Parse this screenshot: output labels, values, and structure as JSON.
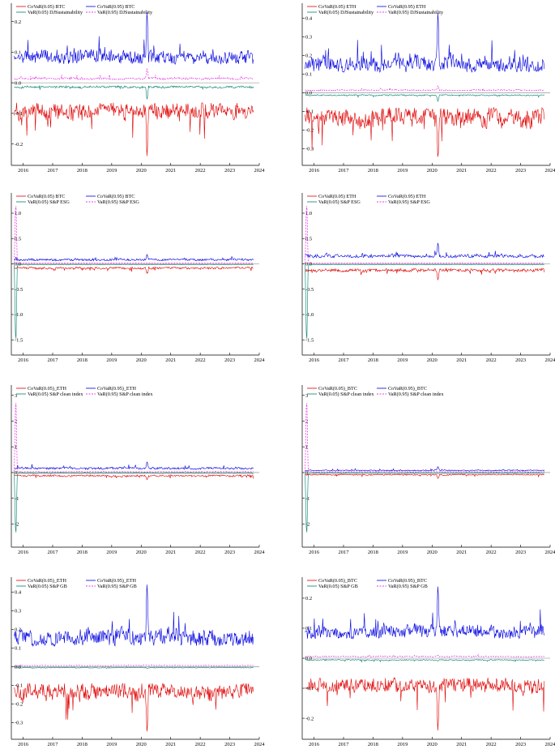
{
  "colors": {
    "covar_low": "#e00000",
    "covar_high": "#0000e0",
    "var_low": "#007f6f",
    "var_high": "#e000e0",
    "axis": "#000000",
    "zero_line": "#808080"
  },
  "x_ticks": [
    "2016",
    "2017",
    "2018",
    "2019",
    "2020",
    "2021",
    "2022",
    "2023",
    "2024"
  ],
  "chart_data": [
    {
      "type": "line",
      "legend": [
        "CoVaR(0.05) BTC",
        "CoVaR(0.95) BTC",
        "VaR(0.05) DJSustainability",
        "VaR(0.95) DJSustainability"
      ],
      "xlim": [
        2015.6,
        2024.0
      ],
      "ylim": [
        -0.27,
        0.26
      ],
      "y_ticks": [
        "-0.2",
        "-0.1",
        "0.0",
        "0.1",
        "0.2"
      ],
      "series": [
        {
          "name": "CoVaR(0.05) BTC",
          "base": -0.065,
          "amp": 0.03,
          "spike": [
            2020.2,
            -0.26
          ]
        },
        {
          "name": "CoVaR(0.95) BTC",
          "base": 0.06,
          "amp": 0.025,
          "spike": [
            2020.2,
            0.25
          ]
        },
        {
          "name": "VaR(0.05) DJSustainability",
          "base": -0.01,
          "amp": 0.004,
          "spike": [
            2020.2,
            -0.06
          ]
        },
        {
          "name": "VaR(0.95) DJSustainability",
          "base": 0.01,
          "amp": 0.004,
          "spike": [
            2020.2,
            0.05
          ]
        }
      ]
    },
    {
      "type": "line",
      "legend": [
        "CoVaR(0.05) ETH",
        "CoVaR(0.95) ETH",
        "VaR(0.05) DJSustainability",
        "VaR(0.95) DJSustainability"
      ],
      "xlim": [
        2015.6,
        2024.0
      ],
      "ylim": [
        -0.39,
        0.48
      ],
      "y_ticks": [
        "-0.3",
        "-0.2",
        "-0.1",
        "0.0",
        "0.1",
        "0.2",
        "0.3",
        "0.4"
      ],
      "series": [
        {
          "name": "CoVaR(0.05) ETH",
          "base": -0.08,
          "amp": 0.06,
          "spike": [
            2020.2,
            -0.38
          ]
        },
        {
          "name": "CoVaR(0.95) ETH",
          "base": 0.11,
          "amp": 0.05,
          "spike": [
            2020.2,
            0.47
          ]
        },
        {
          "name": "VaR(0.05) DJSustainability",
          "base": -0.01,
          "amp": 0.004,
          "spike": [
            2020.2,
            -0.05
          ]
        },
        {
          "name": "VaR(0.95) DJSustainability",
          "base": 0.01,
          "amp": 0.004,
          "spike": [
            2020.2,
            0.04
          ]
        }
      ]
    },
    {
      "type": "line",
      "legend": [
        "CoVaR(0.05) BTC",
        "CoVaR(0.95) BTC",
        "VaR(0.05) S&P ESG",
        "VaR(0.95) S&P ESG"
      ],
      "xlim": [
        2015.6,
        2024.0
      ],
      "ylim": [
        -1.8,
        1.4
      ],
      "y_ticks": [
        "-1.5",
        "-1.0",
        "-0.5",
        "0.0",
        "0.5",
        "1.0"
      ],
      "series": [
        {
          "name": "CoVaR(0.05) BTC",
          "base": -0.06,
          "amp": 0.025,
          "spike": [
            2020.2,
            -0.2
          ]
        },
        {
          "name": "CoVaR(0.95) BTC",
          "base": 0.06,
          "amp": 0.025,
          "spike": [
            2020.2,
            0.2
          ]
        },
        {
          "name": "VaR(0.05) S&P ESG",
          "base": -0.01,
          "amp": 0.004,
          "spike": [
            2015.75,
            -1.75
          ]
        },
        {
          "name": "VaR(0.95) S&P ESG",
          "base": 0.01,
          "amp": 0.004,
          "spike": [
            2015.75,
            1.35
          ]
        }
      ]
    },
    {
      "type": "line",
      "legend": [
        "CoVaR(0.05) ETH",
        "CoVaR(0.95) ETH",
        "VaR(0.05) S&P ESG",
        "VaR(0.95) S&P ESG"
      ],
      "xlim": [
        2015.6,
        2024.0
      ],
      "ylim": [
        -1.8,
        1.4
      ],
      "y_ticks": [
        "-1.5",
        "-1.0",
        "-0.5",
        "0.0",
        "0.5",
        "1.0"
      ],
      "series": [
        {
          "name": "CoVaR(0.05) ETH",
          "base": -0.09,
          "amp": 0.04,
          "spike": [
            2020.2,
            -0.35
          ]
        },
        {
          "name": "CoVaR(0.95) ETH",
          "base": 0.12,
          "amp": 0.04,
          "spike": [
            2020.2,
            0.45
          ]
        },
        {
          "name": "VaR(0.05) S&P ESG",
          "base": -0.01,
          "amp": 0.004,
          "spike": [
            2015.75,
            -1.75
          ]
        },
        {
          "name": "VaR(0.95) S&P ESG",
          "base": 0.01,
          "amp": 0.004,
          "spike": [
            2015.75,
            1.35
          ]
        }
      ]
    },
    {
      "type": "line",
      "legend": [
        "CoVaR(0.05)_ETH",
        "CoVaR(0.95)_ETH",
        "VaR(0.05) S&P clean index",
        "VaR(0.95) S&P clean index"
      ],
      "xlim": [
        2015.6,
        2024.0
      ],
      "ylim": [
        -2.9,
        3.4
      ],
      "y_ticks": [
        "-2",
        "-1",
        "0",
        "1",
        "2",
        "3"
      ],
      "series": [
        {
          "name": "CoVaR(0.05)_ETH",
          "base": -0.09,
          "amp": 0.04,
          "spike": [
            2020.2,
            -0.3
          ]
        },
        {
          "name": "CoVaR(0.95)_ETH",
          "base": 0.12,
          "amp": 0.05,
          "spike": [
            2020.2,
            0.45
          ]
        },
        {
          "name": "VaR(0.05) S&P clean index",
          "base": -0.02,
          "amp": 0.01,
          "spike": [
            2015.75,
            -2.75
          ]
        },
        {
          "name": "VaR(0.95) S&P clean index",
          "base": 0.02,
          "amp": 0.01,
          "spike": [
            2015.75,
            3.2
          ]
        }
      ]
    },
    {
      "type": "line",
      "legend": [
        "CoVaR(0.05)_BTC",
        "CoVaR(0.95)_BTC",
        "VaR(0.05) S&P clean index",
        "VaR(0.95) S&P clean index"
      ],
      "xlim": [
        2015.6,
        2024.0
      ],
      "ylim": [
        -2.9,
        3.4
      ],
      "y_ticks": [
        "-2",
        "-1",
        "0",
        "1",
        "2",
        "3"
      ],
      "series": [
        {
          "name": "CoVaR(0.05)_BTC",
          "base": -0.06,
          "amp": 0.025,
          "spike": [
            2020.2,
            -0.25
          ]
        },
        {
          "name": "CoVaR(0.95)_BTC",
          "base": 0.06,
          "amp": 0.025,
          "spike": [
            2020.2,
            0.25
          ]
        },
        {
          "name": "VaR(0.05) S&P clean index",
          "base": -0.02,
          "amp": 0.01,
          "spike": [
            2015.75,
            -2.75
          ]
        },
        {
          "name": "VaR(0.95) S&P clean index",
          "base": 0.02,
          "amp": 0.01,
          "spike": [
            2015.75,
            3.2
          ]
        }
      ]
    },
    {
      "type": "line",
      "legend": [
        "CoVaR(0.05)_ETH",
        "CoVaR(0.95)_ETH",
        "VaR(0.05) S&P GB",
        "VaR(0.95) S&P GB"
      ],
      "xlim": [
        2015.6,
        2024.0
      ],
      "ylim": [
        -0.39,
        0.48
      ],
      "y_ticks": [
        "-0.3",
        "-0.2",
        "-0.1",
        "0.0",
        "0.1",
        "0.2",
        "0.3",
        "0.4"
      ],
      "series": [
        {
          "name": "CoVaR(0.05)_ETH",
          "base": -0.09,
          "amp": 0.05,
          "spike": [
            2020.2,
            -0.38
          ]
        },
        {
          "name": "CoVaR(0.95)_ETH",
          "base": 0.11,
          "amp": 0.05,
          "spike": [
            2020.2,
            0.47
          ]
        },
        {
          "name": "VaR(0.05) S&P GB",
          "base": -0.004,
          "amp": 0.002,
          "spike": [
            2020.2,
            -0.01
          ]
        },
        {
          "name": "VaR(0.95) S&P GB",
          "base": 0.004,
          "amp": 0.002,
          "spike": [
            2020.2,
            0.01
          ]
        }
      ]
    },
    {
      "type": "line",
      "legend": [
        "CoVaR(0.05)_BTC",
        "CoVaR(0.95)_BTC",
        "VaR(0.05) S&P GB",
        "VaR(0.95) S&P GB"
      ],
      "xlim": [
        2015.6,
        2024.0
      ],
      "ylim": [
        -0.27,
        0.27
      ],
      "y_ticks": [
        "-0.2",
        "-0.1",
        "0.0",
        "0.1",
        "0.2"
      ],
      "series": [
        {
          "name": "CoVaR(0.05)_BTC",
          "base": -0.065,
          "amp": 0.03,
          "spike": [
            2020.2,
            -0.26
          ]
        },
        {
          "name": "CoVaR(0.95)_BTC",
          "base": 0.065,
          "amp": 0.025,
          "spike": [
            2020.2,
            0.26
          ]
        },
        {
          "name": "VaR(0.05) S&P GB",
          "base": -0.004,
          "amp": 0.002,
          "spike": [
            2020.2,
            -0.01
          ]
        },
        {
          "name": "VaR(0.95) S&P GB",
          "base": 0.004,
          "amp": 0.002,
          "spike": [
            2020.2,
            0.01
          ]
        }
      ]
    }
  ]
}
